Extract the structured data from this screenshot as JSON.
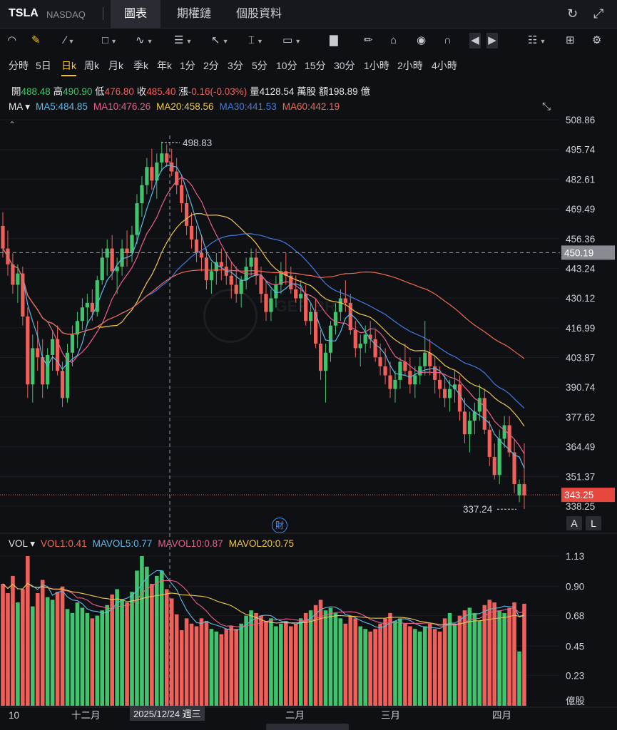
{
  "header": {
    "ticker": "TSLA",
    "exchange": "NASDAQ",
    "tabs": [
      {
        "label": "圖表",
        "active": true
      },
      {
        "label": "期權鏈",
        "active": false
      },
      {
        "label": "個股資料",
        "active": false
      }
    ],
    "icons": [
      "refresh-icon",
      "expand-icon"
    ]
  },
  "toolbar": {
    "tools": [
      "indicator-icon",
      "draw-pen-icon",
      "line-tool-icon",
      "rect-tool-icon",
      "pattern-tool-icon",
      "fib-tool-icon",
      "arrow-tool-icon",
      "text-cursor-icon",
      "label-tool-icon",
      "bars-tool-icon",
      "edit-icon",
      "lock-icon",
      "eye-icon",
      "magnet-icon",
      "prev-icon",
      "next-icon",
      "layout-icon",
      "grid-icon",
      "settings-icon"
    ]
  },
  "periods": [
    "分時",
    "5日",
    "日k",
    "周k",
    "月k",
    "季k",
    "年k",
    "1分",
    "2分",
    "3分",
    "5分",
    "10分",
    "15分",
    "30分",
    "1小時",
    "2小時",
    "4小時"
  ],
  "active_period": "日k",
  "quote": {
    "open_label": "開",
    "open": "488.48",
    "high_label": "高",
    "high": "490.90",
    "low_label": "低",
    "low": "476.80",
    "close_label": "收",
    "close": "485.40",
    "change_label": "漲",
    "change": "-0.16(-0.03%)",
    "volume_label": "量",
    "volume": "4128.54 萬股",
    "amount_label": "額",
    "amount": "198.89 億"
  },
  "ma_legend": {
    "title": "MA",
    "items": [
      {
        "label": "MA5:484.85",
        "color": "#5bbbe8"
      },
      {
        "label": "MA10:476.26",
        "color": "#ec5f8c"
      },
      {
        "label": "MA20:458.56",
        "color": "#f2c94c"
      },
      {
        "label": "MA30:441.53",
        "color": "#3f7de0"
      },
      {
        "label": "MA60:442.19",
        "color": "#f06a52"
      }
    ]
  },
  "vol_legend": {
    "title": "VOL",
    "items": [
      {
        "label": "VOL1:0.41",
        "color": "#f06a52"
      },
      {
        "label": "MAVOL5:0.77",
        "color": "#5bbbe8"
      },
      {
        "label": "MAVOL10:0.87",
        "color": "#ec5f8c"
      },
      {
        "label": "MAVOL20:0.75",
        "color": "#f2c94c"
      }
    ]
  },
  "price_axis": [
    "508.86",
    "495.74",
    "482.61",
    "469.49",
    "456.36",
    "443.24",
    "430.12",
    "416.99",
    "403.87",
    "390.74",
    "377.62",
    "364.49",
    "351.37",
    "338.25"
  ],
  "crosshair_price": "450.19",
  "last_price": "343.25",
  "high_marker": "498.83",
  "low_marker": "337.24",
  "volume_axis": [
    "1.13",
    "0.90",
    "0.68",
    "0.45",
    "0.23"
  ],
  "volume_unit": "億股",
  "time_axis": [
    "10",
    "十二月",
    "二月",
    "三月",
    "四月"
  ],
  "crosshair_date": "2025/12/24 週三",
  "scale_buttons": [
    "A",
    "L"
  ],
  "fin_badge": "財",
  "watermark": "TIGER BR",
  "colors": {
    "up": "#41c26c",
    "down": "#f0605a",
    "bg": "#0f1014",
    "accent": "#f5c518"
  },
  "chart_data": {
    "type": "candlestick",
    "price_range": [
      332,
      514
    ],
    "volume_range": [
      0,
      1.2
    ],
    "candles": [
      [
        462,
        468,
        448,
        452,
        0.92
      ],
      [
        452,
        460,
        440,
        445,
        0.85
      ],
      [
        445,
        450,
        432,
        436,
        0.98
      ],
      [
        436,
        445,
        428,
        441,
        0.78
      ],
      [
        441,
        444,
        418,
        422,
        0.88
      ],
      [
        422,
        426,
        386,
        392,
        1.13
      ],
      [
        392,
        414,
        384,
        408,
        0.75
      ],
      [
        408,
        420,
        398,
        404,
        0.85
      ],
      [
        404,
        412,
        386,
        392,
        0.95
      ],
      [
        392,
        408,
        390,
        405,
        0.82
      ],
      [
        405,
        416,
        398,
        412,
        0.8
      ],
      [
        412,
        418,
        396,
        398,
        0.86
      ],
      [
        398,
        402,
        382,
        386,
        0.9
      ],
      [
        386,
        410,
        384,
        406,
        0.73
      ],
      [
        406,
        418,
        400,
        414,
        0.7
      ],
      [
        414,
        424,
        408,
        420,
        0.78
      ],
      [
        420,
        430,
        416,
        426,
        0.74
      ],
      [
        426,
        432,
        418,
        428,
        0.7
      ],
      [
        428,
        434,
        420,
        424,
        0.66
      ],
      [
        424,
        440,
        422,
        438,
        0.68
      ],
      [
        438,
        452,
        436,
        448,
        0.72
      ],
      [
        448,
        456,
        440,
        452,
        0.76
      ],
      [
        452,
        458,
        438,
        442,
        0.84
      ],
      [
        442,
        448,
        432,
        444,
        0.88
      ],
      [
        444,
        456,
        440,
        452,
        0.8
      ],
      [
        452,
        460,
        444,
        450,
        0.78
      ],
      [
        450,
        462,
        446,
        458,
        0.86
      ],
      [
        458,
        476,
        454,
        472,
        1.02
      ],
      [
        472,
        484,
        466,
        480,
        1.13
      ],
      [
        480,
        492,
        476,
        488,
        1.05
      ],
      [
        488,
        496,
        478,
        482,
        0.92
      ],
      [
        482,
        494,
        474,
        490,
        0.98
      ],
      [
        490,
        499,
        486,
        494,
        1.02
      ],
      [
        494,
        498,
        488,
        490,
        0.88
      ],
      [
        490,
        496,
        484,
        486,
        0.81
      ],
      [
        486,
        492,
        476,
        480,
        0.69
      ],
      [
        480,
        484,
        468,
        472,
        0.57
      ],
      [
        472,
        476,
        458,
        462,
        0.66
      ],
      [
        462,
        468,
        452,
        456,
        0.62
      ],
      [
        456,
        462,
        446,
        450,
        0.6
      ],
      [
        450,
        458,
        442,
        448,
        0.66
      ],
      [
        448,
        452,
        434,
        438,
        0.64
      ],
      [
        438,
        446,
        432,
        442,
        0.58
      ],
      [
        442,
        450,
        436,
        446,
        0.56
      ],
      [
        446,
        452,
        438,
        444,
        0.54
      ],
      [
        444,
        450,
        436,
        440,
        0.58
      ],
      [
        440,
        446,
        430,
        436,
        0.6
      ],
      [
        436,
        444,
        428,
        432,
        0.58
      ],
      [
        432,
        440,
        426,
        438,
        0.62
      ],
      [
        438,
        448,
        434,
        444,
        0.68
      ],
      [
        444,
        452,
        440,
        448,
        0.72
      ],
      [
        448,
        452,
        436,
        440,
        0.7
      ],
      [
        440,
        444,
        428,
        432,
        0.68
      ],
      [
        432,
        438,
        420,
        424,
        0.64
      ],
      [
        424,
        434,
        420,
        430,
        0.66
      ],
      [
        430,
        440,
        426,
        436,
        0.6
      ],
      [
        436,
        446,
        432,
        442,
        0.62
      ],
      [
        442,
        450,
        436,
        440,
        0.64
      ],
      [
        440,
        444,
        432,
        434,
        0.6
      ],
      [
        434,
        440,
        428,
        430,
        0.62
      ],
      [
        430,
        438,
        424,
        432,
        0.66
      ],
      [
        432,
        436,
        418,
        420,
        0.7
      ],
      [
        420,
        428,
        414,
        424,
        0.72
      ],
      [
        424,
        430,
        408,
        410,
        0.76
      ],
      [
        410,
        416,
        394,
        398,
        0.8
      ],
      [
        398,
        410,
        384,
        406,
        0.72
      ],
      [
        406,
        420,
        402,
        418,
        0.74
      ],
      [
        418,
        428,
        414,
        424,
        0.7
      ],
      [
        424,
        434,
        420,
        430,
        0.66
      ],
      [
        430,
        438,
        424,
        428,
        0.62
      ],
      [
        428,
        432,
        414,
        416,
        0.68
      ],
      [
        416,
        420,
        404,
        408,
        0.66
      ],
      [
        408,
        414,
        400,
        410,
        0.6
      ],
      [
        410,
        418,
        406,
        414,
        0.58
      ],
      [
        414,
        420,
        408,
        412,
        0.56
      ],
      [
        412,
        416,
        402,
        404,
        0.58
      ],
      [
        404,
        410,
        396,
        400,
        0.62
      ],
      [
        400,
        408,
        392,
        396,
        0.66
      ],
      [
        396,
        402,
        386,
        390,
        0.7
      ],
      [
        390,
        398,
        384,
        394,
        0.64
      ],
      [
        394,
        404,
        390,
        402,
        0.66
      ],
      [
        402,
        410,
        396,
        398,
        0.62
      ],
      [
        398,
        404,
        388,
        392,
        0.6
      ],
      [
        392,
        400,
        386,
        396,
        0.58
      ],
      [
        396,
        404,
        392,
        400,
        0.56
      ],
      [
        400,
        420,
        396,
        406,
        0.6
      ],
      [
        406,
        412,
        396,
        400,
        0.62
      ],
      [
        400,
        404,
        388,
        394,
        0.58
      ],
      [
        394,
        400,
        386,
        390,
        0.56
      ],
      [
        390,
        396,
        382,
        386,
        0.66
      ],
      [
        386,
        394,
        380,
        390,
        0.7
      ],
      [
        390,
        398,
        384,
        392,
        0.62
      ],
      [
        392,
        396,
        376,
        380,
        0.68
      ],
      [
        380,
        386,
        366,
        370,
        0.72
      ],
      [
        370,
        380,
        362,
        376,
        0.74
      ],
      [
        376,
        384,
        370,
        380,
        0.7
      ],
      [
        380,
        392,
        376,
        386,
        0.64
      ],
      [
        386,
        390,
        370,
        372,
        0.76
      ],
      [
        372,
        376,
        356,
        360,
        0.8
      ],
      [
        360,
        366,
        350,
        352,
        0.78
      ],
      [
        352,
        372,
        348,
        368,
        0.72
      ],
      [
        368,
        378,
        364,
        374,
        0.7
      ],
      [
        374,
        378,
        360,
        362,
        0.74
      ],
      [
        362,
        368,
        344,
        348,
        0.78
      ],
      [
        343,
        350,
        340,
        348,
        0.41
      ],
      [
        348,
        366,
        337,
        343,
        0.77
      ]
    ]
  }
}
